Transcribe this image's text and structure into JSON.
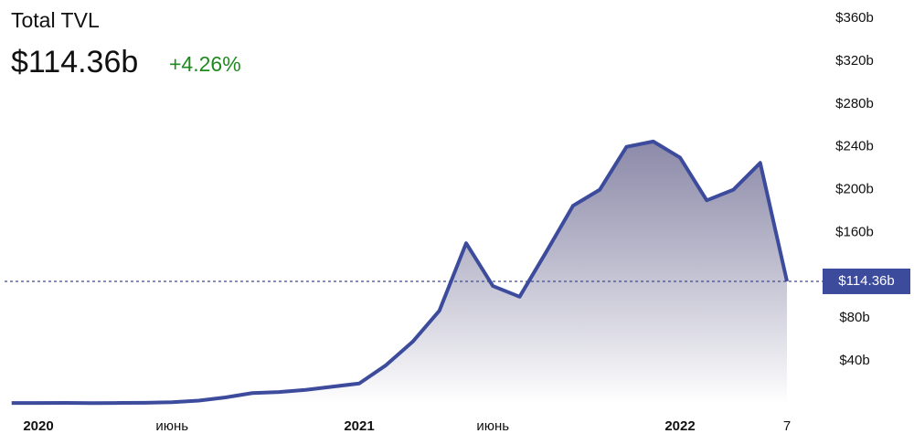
{
  "chart_data": {
    "type": "area",
    "title": "Total TVL",
    "current": {
      "value": 114.36,
      "label": "$114.36b"
    },
    "change": "+4.26%",
    "x": [
      "2019-12",
      "2020-01",
      "2020-02",
      "2020-03",
      "2020-04",
      "2020-05",
      "2020-06",
      "2020-07",
      "2020-08",
      "2020-09",
      "2020-10",
      "2020-11",
      "2020-12",
      "2021-01",
      "2021-02",
      "2021-03",
      "2021-04",
      "2021-05",
      "2021-06",
      "2021-07",
      "2021-08",
      "2021-09",
      "2021-10",
      "2021-11",
      "2021-12",
      "2022-01",
      "2022-02",
      "2022-03",
      "2022-04",
      "2022-05"
    ],
    "series": [
      {
        "name": "TVL",
        "color": "#3d4b9c",
        "values": [
          0.7,
          0.7,
          0.8,
          0.6,
          0.8,
          1,
          1.5,
          3,
          6,
          10,
          11,
          13,
          16,
          19,
          36,
          58,
          87,
          150,
          110,
          100,
          142,
          185,
          200,
          240,
          245,
          230,
          190,
          200,
          225,
          114.36
        ]
      }
    ],
    "xticks": [
      {
        "value": "2020-01",
        "label": "2020"
      },
      {
        "value": "2020-06",
        "label": "июнь"
      },
      {
        "value": "2021-01",
        "label": "2021"
      },
      {
        "value": "2021-06",
        "label": "июнь"
      },
      {
        "value": "2022-01",
        "label": "2022"
      },
      {
        "value": "2022-05",
        "label": "7"
      }
    ],
    "ylim": [
      0,
      375
    ],
    "yticks": [
      {
        "value": 40,
        "label": "$40b"
      },
      {
        "value": 80,
        "label": "$80b"
      },
      {
        "value": 160,
        "label": "$160b"
      },
      {
        "value": 200,
        "label": "$200b"
      },
      {
        "value": 240,
        "label": "$240b"
      },
      {
        "value": 280,
        "label": "$280b"
      },
      {
        "value": 320,
        "label": "$320b"
      },
      {
        "value": 360,
        "label": "$360b"
      }
    ]
  }
}
